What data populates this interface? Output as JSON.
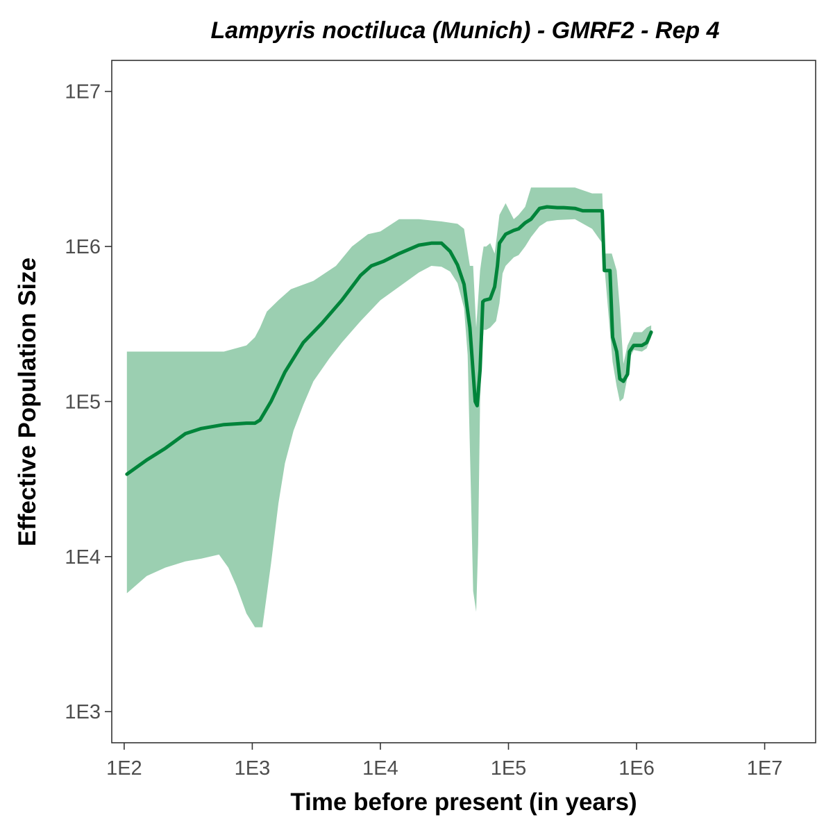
{
  "chart_data": {
    "type": "area",
    "title": "Lampyris noctiluca (Munich) - GMRF2 - Rep 4",
    "xlabel": "Time before present (in years)",
    "ylabel": "Effective Population Size",
    "x_scale": "log10",
    "y_scale": "log10",
    "xlim": [
      80,
      25000000
    ],
    "ylim": [
      630,
      15850000
    ],
    "x_ticks": [
      {
        "value": 100,
        "label": "1E2"
      },
      {
        "value": 1000,
        "label": "1E3"
      },
      {
        "value": 10000,
        "label": "1E4"
      },
      {
        "value": 100000,
        "label": "1E5"
      },
      {
        "value": 1000000,
        "label": "1E6"
      },
      {
        "value": 10000000,
        "label": "1E7"
      }
    ],
    "y_ticks": [
      {
        "value": 1000,
        "label": "1E3"
      },
      {
        "value": 10000,
        "label": "1E4"
      },
      {
        "value": 100000,
        "label": "1E5"
      },
      {
        "value": 1000000,
        "label": "1E6"
      },
      {
        "value": 10000000,
        "label": "1E7"
      }
    ],
    "grid": false,
    "colors": {
      "line": "#00843a",
      "band": "#9bcfb1",
      "frame": "#333333",
      "ticks": "#333333"
    },
    "series": [
      {
        "kind": "median",
        "x": [
          105,
          150,
          210,
          300,
          400,
          600,
          900,
          1050,
          1150,
          1400,
          1800,
          2500,
          3500,
          5000,
          7000,
          8500,
          10500,
          14000,
          20000,
          25000,
          30000,
          35000,
          40000,
          45000,
          50000,
          55000,
          57000,
          60000,
          63000,
          65000,
          72000,
          78000,
          82000,
          85000,
          95000,
          110000,
          120000,
          135000,
          150000,
          175000,
          200000,
          240000,
          270000,
          330000,
          380000,
          450000,
          540000,
          560000,
          620000,
          650000,
          700000,
          740000,
          790000,
          850000,
          880000,
          950000,
          1100000,
          1200000,
          1300000
        ],
        "y": [
          34000,
          42000,
          50000,
          62000,
          67000,
          71000,
          72500,
          72500,
          76000,
          100000,
          155000,
          240000,
          320000,
          450000,
          650000,
          750000,
          800000,
          900000,
          1020000,
          1050000,
          1050000,
          930000,
          760000,
          570000,
          300000,
          100000,
          94000,
          160000,
          440000,
          450000,
          460000,
          550000,
          750000,
          1050000,
          1200000,
          1270000,
          1300000,
          1420000,
          1500000,
          1760000,
          1800000,
          1780000,
          1780000,
          1760000,
          1700000,
          1700000,
          1700000,
          700000,
          700000,
          260000,
          210000,
          140000,
          135000,
          150000,
          210000,
          230000,
          230000,
          240000,
          280000
        ]
      },
      {
        "kind": "lower_95",
        "x": [
          105,
          150,
          210,
          300,
          400,
          550,
          650,
          750,
          900,
          1050,
          1200,
          1400,
          1600,
          1800,
          2100,
          2500,
          3000,
          4000,
          5000,
          7000,
          10000,
          14000,
          20000,
          25000,
          30000,
          35000,
          40000,
          45000,
          48000,
          51000,
          53000,
          56000,
          58000,
          60000,
          62000,
          64000,
          67000,
          72000,
          80000,
          85000,
          90000,
          95000,
          110000,
          120000,
          135000,
          150000,
          175000,
          200000,
          240000,
          330000,
          450000,
          540000,
          560000,
          650000,
          700000,
          740000,
          790000,
          850000,
          880000,
          950000,
          1100000,
          1200000,
          1300000
        ],
        "y": [
          5800,
          7500,
          8500,
          9300,
          9700,
          10300,
          8500,
          6500,
          4300,
          3500,
          3500,
          9000,
          22000,
          40000,
          65000,
          95000,
          135000,
          190000,
          240000,
          330000,
          450000,
          550000,
          680000,
          750000,
          740000,
          690000,
          580000,
          400000,
          200000,
          25000,
          6000,
          4400,
          12000,
          100000,
          200000,
          290000,
          290000,
          300000,
          330000,
          430000,
          670000,
          750000,
          850000,
          880000,
          1000000,
          1150000,
          1350000,
          1450000,
          1480000,
          1500000,
          1300000,
          1050000,
          750000,
          180000,
          125000,
          100000,
          105000,
          145000,
          190000,
          215000,
          210000,
          220000,
          260000
        ]
      },
      {
        "kind": "upper_95",
        "x": [
          105,
          300,
          600,
          900,
          1050,
          1150,
          1300,
          1600,
          2000,
          3000,
          4500,
          6000,
          8000,
          10000,
          14000,
          20000,
          30000,
          40000,
          45000,
          50000,
          53000,
          56000,
          60000,
          62000,
          64000,
          67000,
          72000,
          78000,
          82000,
          85000,
          95000,
          110000,
          120000,
          135000,
          150000,
          175000,
          200000,
          330000,
          450000,
          540000,
          560000,
          620000,
          640000,
          700000,
          740000,
          790000,
          850000,
          950000,
          1100000,
          1200000,
          1300000
        ],
        "y": [
          210000,
          210000,
          210000,
          230000,
          260000,
          300000,
          380000,
          450000,
          530000,
          600000,
          750000,
          1000000,
          1200000,
          1250000,
          1500000,
          1500000,
          1450000,
          1400000,
          1300000,
          750000,
          750000,
          300000,
          700000,
          850000,
          1000000,
          1000000,
          1050000,
          900000,
          1250000,
          1600000,
          1900000,
          1500000,
          1600000,
          1800000,
          2400000,
          2400000,
          2400000,
          2400000,
          2200000,
          2200000,
          900000,
          900000,
          900000,
          700000,
          400000,
          175000,
          230000,
          280000,
          280000,
          300000,
          310000
        ]
      }
    ]
  }
}
